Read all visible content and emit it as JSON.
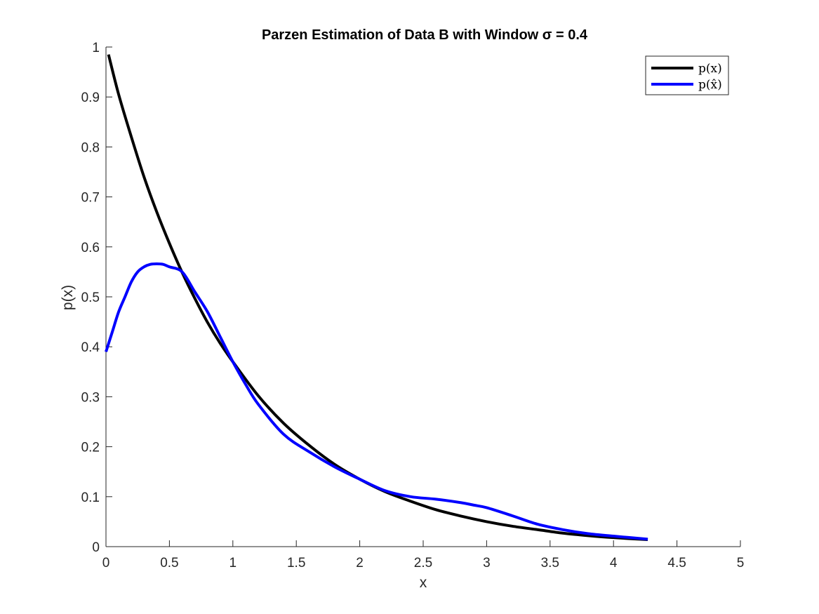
{
  "chart_data": {
    "type": "line",
    "title": "Parzen Estimation of Data B with Window σ = 0.4",
    "xlabel": "x",
    "ylabel": "p(x)",
    "xlim": [
      0,
      5
    ],
    "ylim": [
      0,
      1
    ],
    "xticks": [
      0,
      0.5,
      1,
      1.5,
      2,
      2.5,
      3,
      3.5,
      4,
      4.5,
      5
    ],
    "xtick_labels": [
      "0",
      "0.5",
      "1",
      "1.5",
      "2",
      "2.5",
      "3",
      "3.5",
      "4",
      "4.5",
      "5"
    ],
    "yticks": [
      0,
      0.1,
      0.2,
      0.3,
      0.4,
      0.5,
      0.6,
      0.7,
      0.8,
      0.9,
      1
    ],
    "ytick_labels": [
      "0",
      "0.1",
      "0.2",
      "0.3",
      "0.4",
      "0.5",
      "0.6",
      "0.7",
      "0.8",
      "0.9",
      "1"
    ],
    "grid": false,
    "legend_position": "top-right",
    "series": [
      {
        "name": "p(x)",
        "color": "#000000",
        "x": [
          0.02,
          0.1,
          0.2,
          0.3,
          0.4,
          0.5,
          0.6,
          0.7,
          0.8,
          0.9,
          1.0,
          1.2,
          1.4,
          1.6,
          1.8,
          2.0,
          2.2,
          2.4,
          2.6,
          2.8,
          3.0,
          3.2,
          3.4,
          3.6,
          3.8,
          4.0,
          4.27
        ],
        "y": [
          0.985,
          0.905,
          0.82,
          0.74,
          0.67,
          0.607,
          0.549,
          0.497,
          0.449,
          0.407,
          0.37,
          0.302,
          0.247,
          0.203,
          0.165,
          0.135,
          0.11,
          0.091,
          0.074,
          0.061,
          0.05,
          0.041,
          0.034,
          0.027,
          0.022,
          0.018,
          0.014
        ]
      },
      {
        "name": "p(x̂)",
        "color": "#0000ff",
        "x": [
          0.0,
          0.05,
          0.1,
          0.15,
          0.2,
          0.25,
          0.3,
          0.35,
          0.4,
          0.45,
          0.5,
          0.6,
          0.7,
          0.8,
          0.9,
          1.0,
          1.1,
          1.2,
          1.4,
          1.6,
          1.8,
          2.0,
          2.2,
          2.4,
          2.6,
          2.8,
          2.9,
          3.0,
          3.2,
          3.4,
          3.6,
          3.8,
          4.0,
          4.27
        ],
        "y": [
          0.39,
          0.43,
          0.47,
          0.5,
          0.53,
          0.55,
          0.56,
          0.565,
          0.566,
          0.565,
          0.56,
          0.55,
          0.51,
          0.47,
          0.42,
          0.37,
          0.325,
          0.285,
          0.225,
          0.19,
          0.16,
          0.135,
          0.112,
          0.1,
          0.095,
          0.088,
          0.083,
          0.078,
          0.062,
          0.045,
          0.034,
          0.026,
          0.021,
          0.015
        ]
      }
    ]
  }
}
